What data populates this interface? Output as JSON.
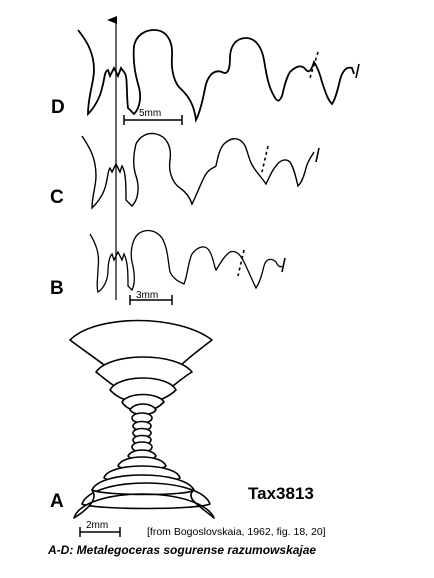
{
  "panels": {
    "d": {
      "letter": "D"
    },
    "c": {
      "letter": "C"
    },
    "b": {
      "letter": "B"
    },
    "a": {
      "letter": "A"
    }
  },
  "scale_bars": {
    "d": "5mm",
    "b": "3mm",
    "a": "2mm"
  },
  "taxon_code": "Tax3813",
  "source_note": "[from Bogoslovskaia, 1962, fig. 18, 20]",
  "caption": "A-D: Metalegoceras sogurense razumowskajae",
  "colors": {
    "ink": "#000000",
    "background": "#ffffff"
  }
}
